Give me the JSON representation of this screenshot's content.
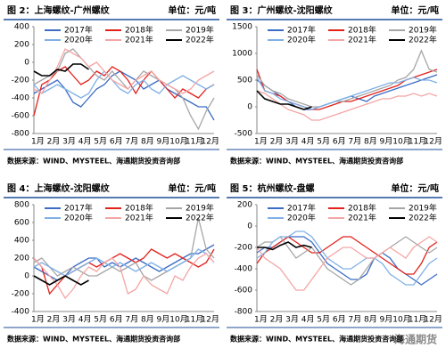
{
  "chart_data": [
    {
      "type": "line",
      "title": "图 2：上海螺纹-广州螺纹",
      "unit": "单位：元/吨",
      "source": "数据来源：WIND、MYSTEEL、海通期货投资咨询部",
      "categories": [
        "1月",
        null,
        "2月",
        null,
        "3月",
        null,
        "4月",
        null,
        "5月",
        null,
        "6月",
        null,
        "7月",
        null,
        "8月",
        null,
        "9月",
        null,
        "10月",
        null,
        "11月",
        null,
        "12月",
        null
      ],
      "ylim": [
        -800,
        400
      ],
      "yticks": [
        -800,
        -600,
        -400,
        -200,
        0,
        200,
        400
      ],
      "series": [
        {
          "name": "2017年",
          "color": "#3a6cc4",
          "values": [
            -350,
            -300,
            -250,
            -200,
            -300,
            -450,
            -500,
            -400,
            -300,
            -250,
            -150,
            -100,
            -150,
            -200,
            -300,
            -250,
            -200,
            -300,
            -350,
            -400,
            -450,
            -500,
            -500,
            -650
          ]
        },
        {
          "name": "2018年",
          "color": "#e3201b",
          "values": [
            -600,
            -250,
            -200,
            -100,
            -50,
            -150,
            -250,
            -200,
            -100,
            -150,
            -50,
            -100,
            -200,
            -350,
            -200,
            -100,
            -200,
            -300,
            -400,
            -300,
            -350,
            -400,
            -300,
            -250
          ]
        },
        {
          "name": "2019年",
          "color": "#a6a6a6",
          "values": [
            -250,
            -200,
            -150,
            -100,
            100,
            150,
            50,
            -50,
            -150,
            -200,
            -100,
            -200,
            -300,
            -200,
            -100,
            -150,
            -200,
            -250,
            -300,
            -400,
            -600,
            -750,
            -550,
            -400
          ]
        },
        {
          "name": "2020年",
          "color": "#7fb0e6",
          "values": [
            -250,
            -350,
            -300,
            -250,
            -300,
            -350,
            -400,
            -350,
            -200,
            -100,
            -200,
            -300,
            -350,
            -250,
            -200,
            -300,
            -350,
            -250,
            -200,
            -150,
            -200,
            -250,
            -300,
            -250
          ]
        },
        {
          "name": "2021年",
          "color": "#f4a5a5",
          "values": [
            -300,
            -350,
            -200,
            -50,
            150,
            100,
            50,
            -50,
            0,
            -100,
            -200,
            -250,
            -300,
            -200,
            -150,
            -100,
            -200,
            -250,
            -300,
            -350,
            -300,
            -200,
            -150,
            -100
          ]
        },
        {
          "name": "2022年",
          "color": "#000000",
          "values": [
            -100,
            -150,
            -150,
            -80,
            -100,
            -20,
            -20,
            -80,
            null,
            null,
            null,
            null,
            null,
            null,
            null,
            null,
            null,
            null,
            null,
            null,
            null,
            null,
            null,
            null
          ]
        }
      ]
    },
    {
      "type": "line",
      "title": "图 3：广州螺纹-沈阳螺纹",
      "unit": "单位：元/吨",
      "source": "数据来源：WIND、MYSTEEL、海通期货投资咨询部",
      "categories": [
        "1月",
        null,
        "2月",
        null,
        "3月",
        null,
        "4月",
        null,
        "5月",
        null,
        "6月",
        null,
        "7月",
        null,
        "8月",
        null,
        "9月",
        null,
        "10月",
        null,
        "11月",
        null,
        "12月",
        null
      ],
      "ylim": [
        -500,
        1500
      ],
      "yticks": [
        -500,
        0,
        500,
        1000,
        1500
      ],
      "series": [
        {
          "name": "2017年",
          "color": "#3a6cc4",
          "values": [
            500,
            400,
            300,
            200,
            100,
            0,
            -50,
            -50,
            0,
            50,
            100,
            150,
            200,
            150,
            100,
            200,
            250,
            300,
            350,
            400,
            450,
            500,
            550,
            600
          ]
        },
        {
          "name": "2018年",
          "color": "#e3201b",
          "values": [
            700,
            300,
            250,
            200,
            100,
            50,
            0,
            -50,
            -50,
            0,
            50,
            100,
            100,
            150,
            200,
            250,
            300,
            350,
            400,
            500,
            550,
            600,
            650,
            700
          ]
        },
        {
          "name": "2019年",
          "color": "#a6a6a6",
          "values": [
            600,
            400,
            300,
            250,
            150,
            100,
            50,
            0,
            0,
            50,
            100,
            100,
            150,
            200,
            250,
            300,
            350,
            400,
            500,
            550,
            700,
            1050,
            700,
            650
          ]
        },
        {
          "name": "2020年",
          "color": "#7fb0e6",
          "values": [
            550,
            300,
            250,
            150,
            100,
            50,
            0,
            -50,
            0,
            50,
            100,
            150,
            200,
            250,
            300,
            350,
            400,
            450,
            450,
            500,
            550,
            500,
            500,
            450
          ]
        },
        {
          "name": "2021年",
          "color": "#f4a5a5",
          "values": [
            300,
            250,
            150,
            50,
            -50,
            -100,
            -150,
            -250,
            -250,
            -200,
            -150,
            -100,
            -50,
            0,
            50,
            100,
            150,
            150,
            200,
            200,
            250,
            200,
            250,
            200
          ]
        },
        {
          "name": "2022年",
          "color": "#000000",
          "values": [
            300,
            150,
            100,
            50,
            50,
            0,
            -50,
            0,
            null,
            null,
            null,
            null,
            null,
            null,
            null,
            null,
            null,
            null,
            null,
            null,
            null,
            null,
            null,
            null
          ]
        }
      ]
    },
    {
      "type": "line",
      "title": "图 4：上海螺纹-沈阳螺纹",
      "unit": "单位：元/吨",
      "source": "数据来源：WIND、MYSTEEL、海通期货投资咨询部",
      "categories": [
        "1月",
        null,
        "2月",
        null,
        "3月",
        null,
        "4月",
        null,
        "5月",
        null,
        "6月",
        null,
        "7月",
        null,
        "8月",
        null,
        "9月",
        null,
        "10月",
        null,
        "11月",
        null,
        "12月",
        null
      ],
      "ylim": [
        -400,
        800
      ],
      "yticks": [
        -400,
        -200,
        0,
        200,
        400,
        600,
        800
      ],
      "series": [
        {
          "name": "2017年",
          "color": "#3a6cc4",
          "values": [
            100,
            50,
            0,
            -50,
            0,
            100,
            150,
            200,
            200,
            100,
            150,
            100,
            150,
            200,
            150,
            100,
            50,
            100,
            150,
            200,
            250,
            250,
            300,
            350
          ]
        },
        {
          "name": "2018年",
          "color": "#e3201b",
          "values": [
            200,
            100,
            -200,
            -100,
            0,
            50,
            100,
            150,
            100,
            150,
            200,
            250,
            200,
            150,
            200,
            300,
            250,
            200,
            250,
            200,
            150,
            100,
            150,
            300
          ]
        },
        {
          "name": "2019年",
          "color": "#a6a6a6",
          "values": [
            150,
            200,
            100,
            0,
            50,
            100,
            50,
            0,
            0,
            50,
            100,
            50,
            100,
            150,
            0,
            -50,
            0,
            50,
            100,
            150,
            200,
            650,
            300,
            200
          ]
        },
        {
          "name": "2020年",
          "color": "#7fb0e6",
          "values": [
            100,
            150,
            100,
            50,
            0,
            50,
            100,
            150,
            200,
            150,
            100,
            150,
            100,
            50,
            100,
            150,
            100,
            50,
            100,
            150,
            200,
            300,
            250,
            150
          ]
        },
        {
          "name": "2021年",
          "color": "#f4a5a5",
          "values": [
            200,
            100,
            0,
            -100,
            -250,
            -150,
            0,
            100,
            50,
            150,
            200,
            100,
            -200,
            -150,
            0,
            -100,
            -150,
            -200,
            0,
            -50,
            100,
            200,
            250,
            150
          ]
        },
        {
          "name": "2022年",
          "color": "#000000",
          "values": [
            0,
            -50,
            -100,
            -50,
            0,
            -50,
            -100,
            -50,
            null,
            null,
            null,
            null,
            null,
            null,
            null,
            null,
            null,
            null,
            null,
            null,
            null,
            null,
            null,
            null
          ]
        }
      ]
    },
    {
      "type": "line",
      "title": "图 5：杭州螺纹-盘螺",
      "unit": "单位：元/吨",
      "source": "数据来源：WIND、MYSTEEL、海通期货投资咨询部",
      "categories": [
        "1月",
        null,
        "2月",
        null,
        "3月",
        null,
        "4月",
        null,
        "5月",
        null,
        "6月",
        null,
        "7月",
        null,
        "8月",
        null,
        "9月",
        null,
        "10月",
        null,
        "11月",
        null,
        "12月",
        null
      ],
      "ylim": [
        -800,
        200
      ],
      "yticks": [
        -800,
        -600,
        -400,
        -200,
        0,
        200
      ],
      "series": [
        {
          "name": "2017年",
          "color": "#3a6cc4",
          "values": [
            -250,
            -200,
            -200,
            -150,
            -100,
            -100,
            -100,
            -150,
            -250,
            -350,
            -400,
            -450,
            -500,
            -500,
            -450,
            -300,
            -250,
            -300,
            -400,
            -450,
            -500,
            -550,
            -500,
            -450
          ]
        },
        {
          "name": "2018年",
          "color": "#e3201b",
          "values": [
            -350,
            -250,
            -200,
            -150,
            -100,
            -150,
            -200,
            -250,
            -250,
            -200,
            -150,
            -100,
            -100,
            -150,
            -200,
            -250,
            -300,
            -350,
            -400,
            -450,
            -450,
            -350,
            -200,
            -150
          ]
        },
        {
          "name": "2019年",
          "color": "#a6a6a6",
          "values": [
            -200,
            -150,
            -150,
            -100,
            -200,
            -300,
            -250,
            -200,
            -300,
            -400,
            -450,
            -500,
            -550,
            -500,
            -400,
            -300,
            -250,
            -200,
            -150,
            -100,
            -150,
            -200,
            -250,
            -200
          ]
        },
        {
          "name": "2020年",
          "color": "#7fb0e6",
          "values": [
            -300,
            -250,
            -150,
            -100,
            -100,
            -50,
            -50,
            -100,
            -200,
            -300,
            -350,
            -400,
            -400,
            -350,
            -300,
            -300,
            -350,
            -450,
            -500,
            -550,
            -550,
            -450,
            -350,
            -300
          ]
        },
        {
          "name": "2021年",
          "color": "#f4a5a5",
          "values": [
            -200,
            -300,
            -350,
            -400,
            -500,
            -600,
            -600,
            -500,
            -400,
            -300,
            -250,
            -200,
            -200,
            -250,
            -300,
            -300,
            -250,
            -200,
            -250,
            -300,
            -200,
            -150,
            -100,
            -150
          ]
        },
        {
          "name": "2022年",
          "color": "#000000",
          "values": [
            -200,
            -200,
            -220,
            -180,
            -150,
            -200,
            -180,
            -200,
            null,
            null,
            null,
            null,
            null,
            null,
            null,
            null,
            null,
            null,
            null,
            null,
            null,
            null,
            null,
            null
          ]
        }
      ]
    }
  ],
  "watermark": "海通期货"
}
